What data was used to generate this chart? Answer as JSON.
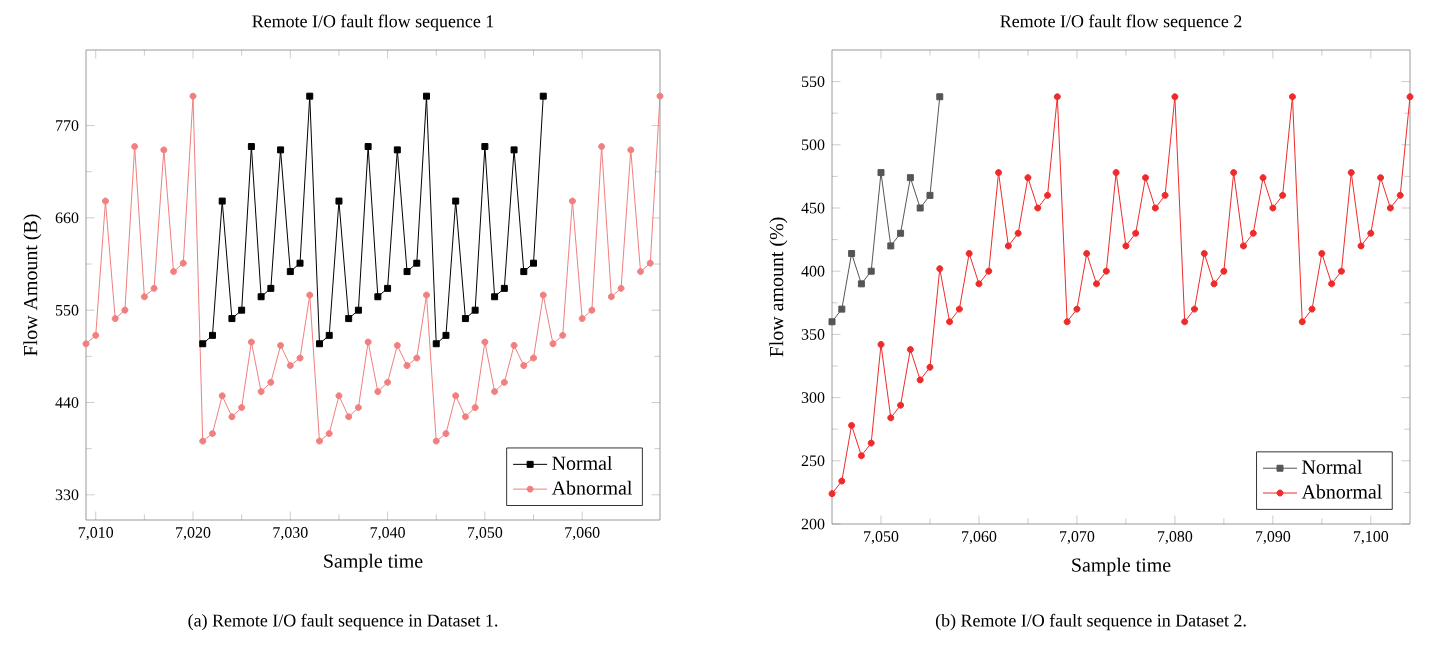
{
  "chart_data": [
    {
      "type": "line",
      "title": "Remote I/O fault flow sequence 1",
      "xlabel": "Sample time",
      "ylabel": "Flow Amount (B)",
      "annotations": [
        "(a) Remote I/O fault sequence in Dataset 1."
      ],
      "xlim": [
        7009,
        7068
      ],
      "ylim": [
        300,
        860
      ],
      "xticks": [
        {
          "value": 7010,
          "label": "7,010"
        },
        {
          "value": 7020,
          "label": "7,020"
        },
        {
          "value": 7030,
          "label": "7,030"
        },
        {
          "value": 7040,
          "label": "7,040"
        },
        {
          "value": 7050,
          "label": "7,050"
        },
        {
          "value": 7060,
          "label": "7,060"
        }
      ],
      "yticks": [
        330,
        440,
        550,
        660,
        770
      ],
      "legend": "bottom right",
      "line_style": "solid",
      "series": [
        {
          "name": "Normal",
          "color": "#000000",
          "marker": "square",
          "x": [
            7021,
            7022,
            7023,
            7024,
            7025,
            7026,
            7027,
            7028,
            7029,
            7030,
            7031,
            7032,
            7033,
            7034,
            7035,
            7036,
            7037,
            7038,
            7039,
            7040,
            7041,
            7042,
            7043,
            7044,
            7045,
            7046,
            7047,
            7048,
            7049,
            7050,
            7051,
            7052,
            7053,
            7054,
            7055,
            7056
          ],
          "values": [
            510,
            520,
            680,
            540,
            550,
            745,
            566,
            576,
            741,
            596,
            606,
            805,
            510,
            520,
            680,
            540,
            550,
            745,
            566,
            576,
            741,
            596,
            606,
            805,
            510,
            520,
            680,
            540,
            550,
            745,
            566,
            576,
            741,
            596,
            606,
            805
          ]
        },
        {
          "name": "Abnormal",
          "color": "#f08080",
          "marker": "circle",
          "x": [
            7009,
            7010,
            7011,
            7012,
            7013,
            7014,
            7015,
            7016,
            7017,
            7018,
            7019,
            7020,
            7021,
            7022,
            7023,
            7024,
            7025,
            7026,
            7027,
            7028,
            7029,
            7030,
            7031,
            7032,
            7033,
            7034,
            7035,
            7036,
            7037,
            7038,
            7039,
            7040,
            7041,
            7042,
            7043,
            7044,
            7045,
            7046,
            7047,
            7048,
            7049,
            7050,
            7051,
            7052,
            7053,
            7054,
            7055,
            7056,
            7057,
            7058,
            7059,
            7060,
            7061,
            7062,
            7063,
            7064,
            7065,
            7066,
            7067,
            7068
          ],
          "values": [
            510,
            520,
            680,
            540,
            550,
            745,
            566,
            576,
            741,
            596,
            606,
            805,
            394,
            403,
            448,
            423,
            434,
            512,
            453,
            464,
            508,
            484,
            493,
            568,
            394,
            403,
            448,
            423,
            434,
            512,
            453,
            464,
            508,
            484,
            493,
            568,
            394,
            403,
            448,
            423,
            434,
            512,
            453,
            464,
            508,
            484,
            493,
            568,
            510,
            520,
            680,
            540,
            550,
            745,
            566,
            576,
            741,
            596,
            606,
            805
          ]
        }
      ]
    },
    {
      "type": "line",
      "title": "Remote I/O fault flow sequence 2",
      "xlabel": "Sample time",
      "ylabel": "Flow amount (%)",
      "annotations": [
        "(b) Remote I/O fault sequence in Dataset 2."
      ],
      "xlim": [
        7045,
        7104
      ],
      "ylim": [
        200,
        575
      ],
      "xticks": [
        {
          "value": 7050,
          "label": "7,050"
        },
        {
          "value": 7060,
          "label": "7,060"
        },
        {
          "value": 7070,
          "label": "7,070"
        },
        {
          "value": 7080,
          "label": "7,080"
        },
        {
          "value": 7090,
          "label": "7,090"
        },
        {
          "value": 7100,
          "label": "7,100"
        }
      ],
      "yticks": [
        200,
        250,
        300,
        350,
        400,
        450,
        500,
        550
      ],
      "legend": "bottom right",
      "line_style": "solid",
      "series": [
        {
          "name": "Normal",
          "color": "#555555",
          "marker": "square",
          "x": [
            7045,
            7046,
            7047,
            7048,
            7049,
            7050,
            7051,
            7052,
            7053,
            7054,
            7055,
            7056
          ],
          "values": [
            360,
            370,
            414,
            390,
            400,
            478,
            420,
            430,
            474,
            450,
            460,
            538
          ]
        },
        {
          "name": "Abnormal",
          "color": "#ee2a2a",
          "marker": "circle",
          "x": [
            7045,
            7046,
            7047,
            7048,
            7049,
            7050,
            7051,
            7052,
            7053,
            7054,
            7055,
            7056,
            7057,
            7058,
            7059,
            7060,
            7061,
            7062,
            7063,
            7064,
            7065,
            7066,
            7067,
            7068,
            7069,
            7070,
            7071,
            7072,
            7073,
            7074,
            7075,
            7076,
            7077,
            7078,
            7079,
            7080,
            7081,
            7082,
            7083,
            7084,
            7085,
            7086,
            7087,
            7088,
            7089,
            7090,
            7091,
            7092,
            7093,
            7094,
            7095,
            7096,
            7097,
            7098,
            7099,
            7100,
            7101,
            7102,
            7103,
            7104
          ],
          "values": [
            224,
            234,
            278,
            254,
            264,
            342,
            284,
            294,
            338,
            314,
            324,
            402,
            360,
            370,
            414,
            390,
            400,
            478,
            420,
            430,
            474,
            450,
            460,
            538,
            360,
            370,
            414,
            390,
            400,
            478,
            420,
            430,
            474,
            450,
            460,
            538,
            360,
            370,
            414,
            390,
            400,
            478,
            420,
            430,
            474,
            450,
            460,
            538,
            360,
            370,
            414,
            390,
            400,
            478,
            420,
            430,
            474,
            450,
            460,
            538
          ]
        }
      ]
    }
  ]
}
